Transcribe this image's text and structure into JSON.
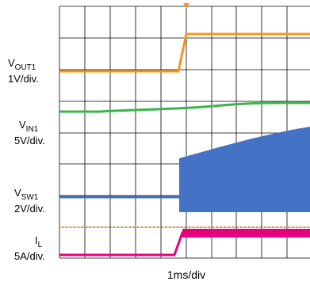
{
  "traces": [
    {
      "symbol": "V",
      "subscript": "OUT1",
      "scale": "1V/div."
    },
    {
      "symbol": "V",
      "subscript": "IN1",
      "scale": "5V/div."
    },
    {
      "symbol": "V",
      "subscript": "SW1",
      "scale": "2V/div."
    },
    {
      "symbol": "I",
      "subscript": "L",
      "scale": "5A/div."
    }
  ],
  "timebase": "1ms/div"
}
